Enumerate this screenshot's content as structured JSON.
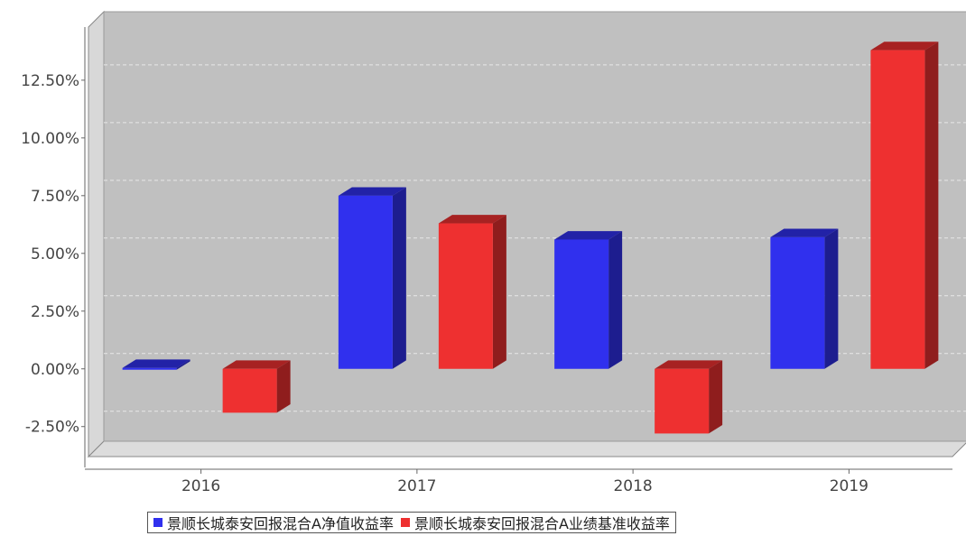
{
  "chart_data": {
    "type": "bar",
    "style": "3d",
    "categories": [
      "2016",
      "2017",
      "2018",
      "2019"
    ],
    "series": [
      {
        "name": "景顺长城泰安回报混合A净值收益率",
        "color": "#3030ee",
        "values": [
          -0.05,
          7.5,
          5.6,
          5.7
        ]
      },
      {
        "name": "景顺长城泰安回报混合A业绩基准收益率",
        "color": "#ee3030",
        "values": [
          -1.9,
          6.3,
          -2.8,
          13.8
        ]
      }
    ],
    "ylim": [
      -3.8,
      14.8
    ],
    "yticks": [
      "-2.50%",
      "0.00%",
      "2.50%",
      "5.00%",
      "7.50%",
      "10.00%",
      "12.50%"
    ],
    "ytick_values": [
      -2.5,
      0,
      2.5,
      5,
      7.5,
      10,
      12.5
    ],
    "grid": true,
    "legend_position": "bottom",
    "plot_background": "#c0c0c0"
  }
}
